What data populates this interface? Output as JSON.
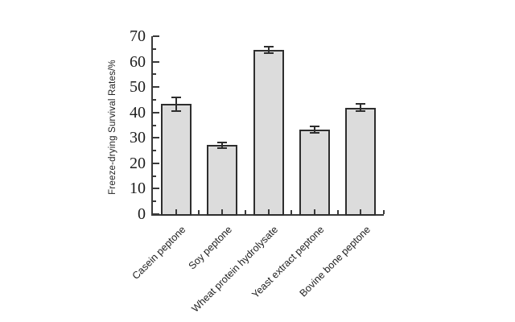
{
  "figure": {
    "background": "#ffffff",
    "bar_fill": "#dcdcdc",
    "bar_border": "#2e2e2e",
    "axis_color": "#3a3a3a",
    "error_color": "#2e2e2e",
    "text_color": "#1c1c1c"
  },
  "chart_data": {
    "type": "bar",
    "title": "",
    "xlabel": "",
    "ylabel": "Freeze-drying Survival Rates/%",
    "ylim": [
      0,
      70
    ],
    "yticks": [
      0,
      10,
      20,
      30,
      40,
      50,
      60,
      70
    ],
    "ytick_minor_step": 5,
    "grid": false,
    "legend": null,
    "categories": [
      "Casein peptone",
      "Soy peptone",
      "Wheat protein hydrolysate",
      "Yeast extract peptone",
      "Bovine bone peptone"
    ],
    "values": [
      43.3,
      27.2,
      64.6,
      33.2,
      41.9
    ],
    "errors": [
      2.6,
      1.1,
      1.4,
      1.3,
      1.5
    ]
  }
}
